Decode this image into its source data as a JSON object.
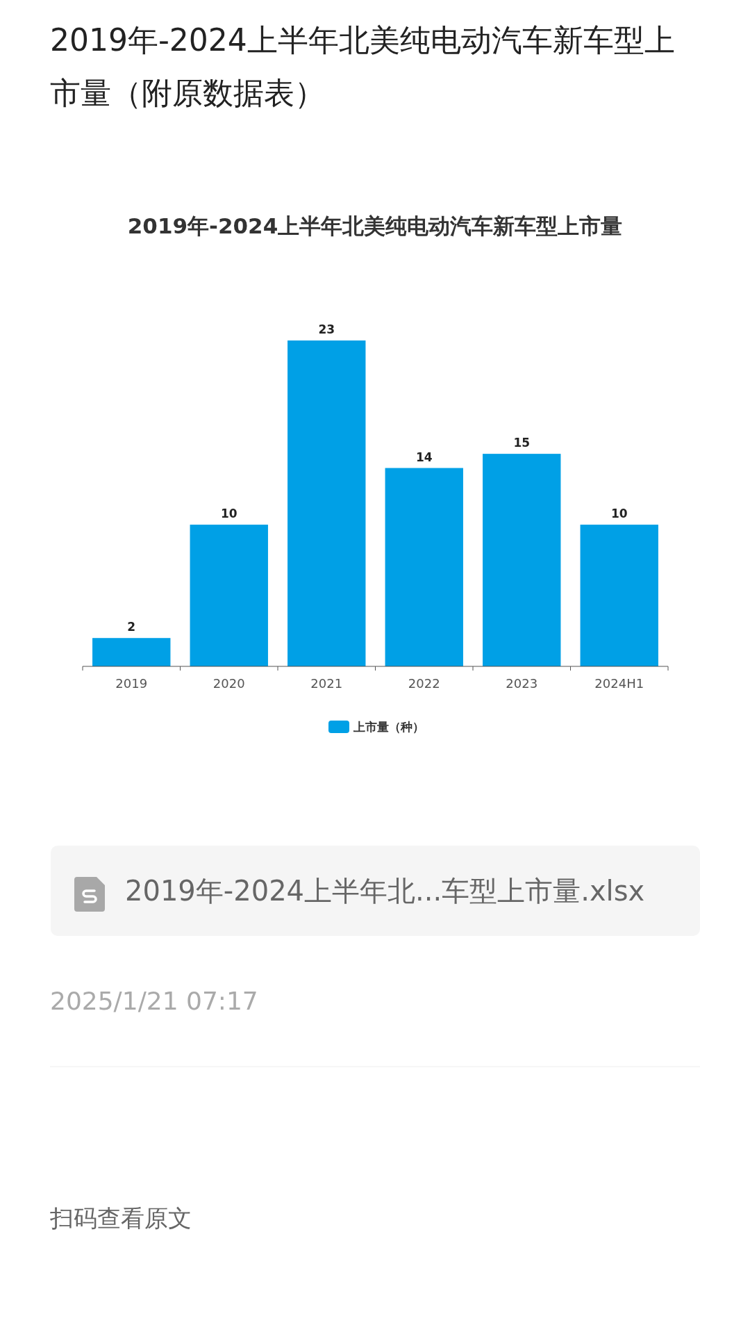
{
  "chart_data": {
    "type": "bar",
    "title": "2019年-2024上半年北美纯电动汽车新车型上市量（附原数据表）",
    "subtitle": "2019年-2024上半年北美纯电动汽车新车型上市量",
    "categories": [
      "2019",
      "2020",
      "2021",
      "2022",
      "2023",
      "2024H1"
    ],
    "series": [
      {
        "name": "上市量（种）",
        "color": "#00a0e6",
        "values": [
          2,
          10,
          23,
          14,
          15,
          10
        ]
      }
    ],
    "data_labels": true,
    "tick_labels": "x",
    "legend": "bottom",
    "annotations": [
      "2019年-2024上半年北...车型上市量.xlsx",
      "2025/1/21 07:17",
      "扫码查看原文"
    ]
  }
}
